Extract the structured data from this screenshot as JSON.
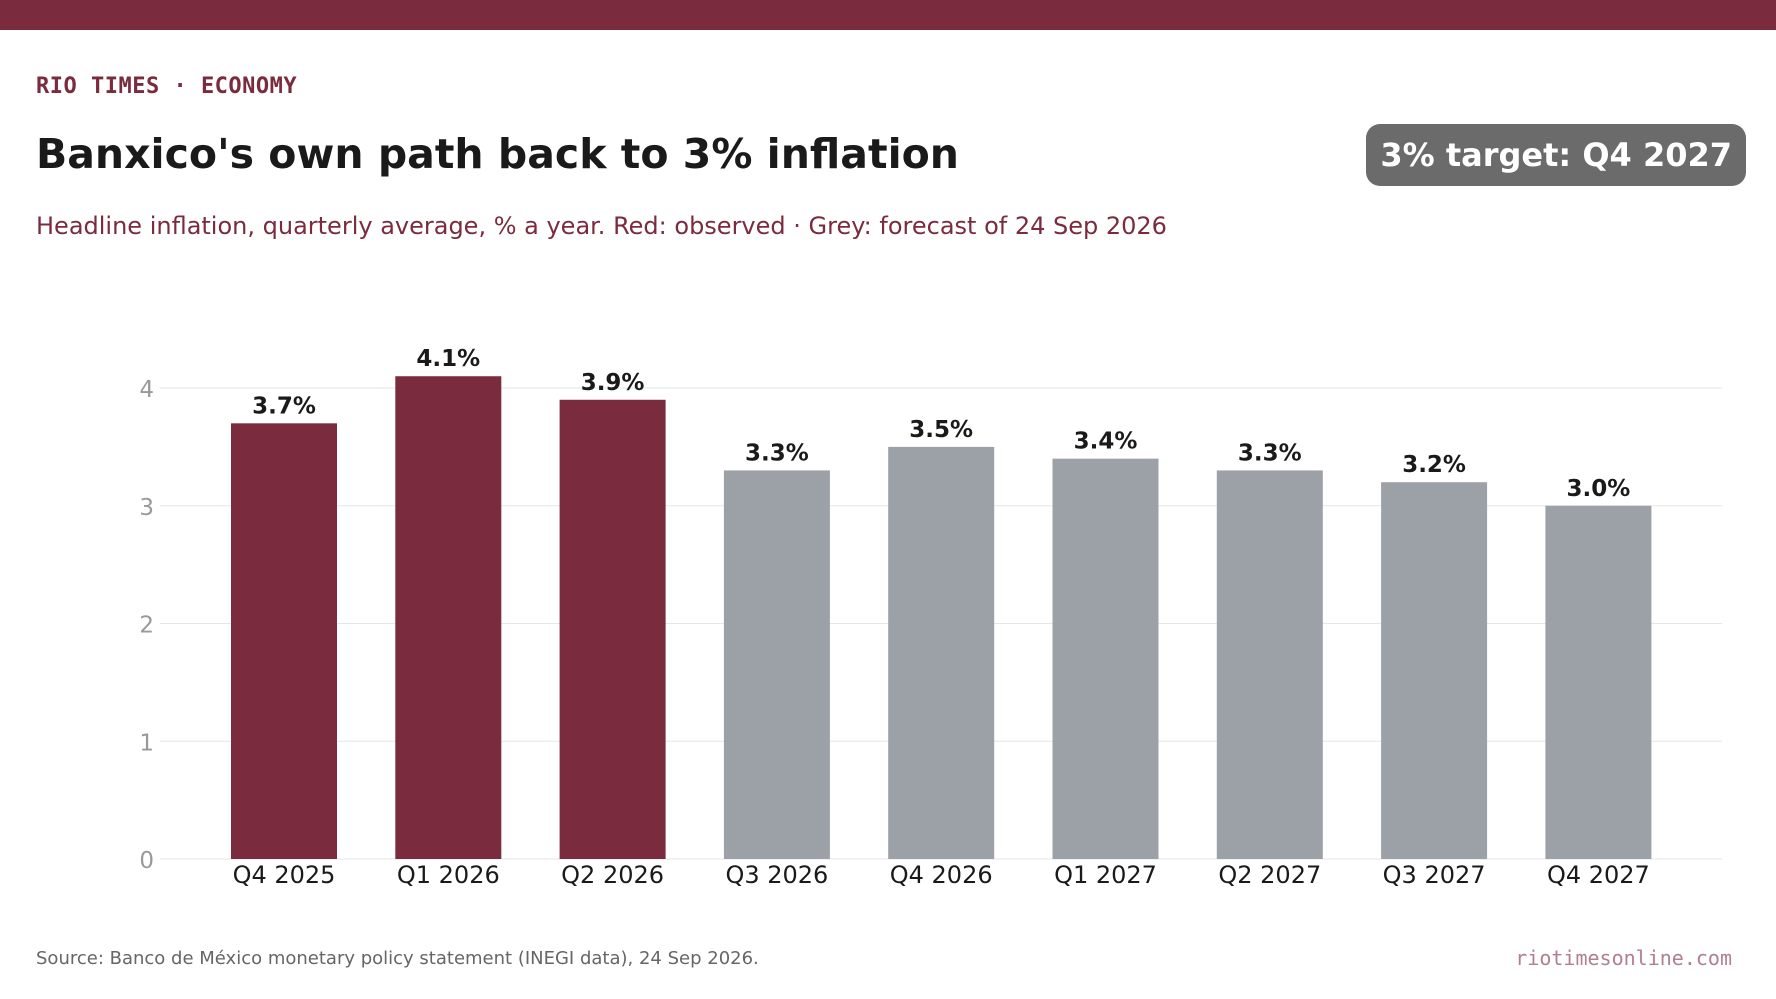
{
  "header": {
    "kicker": "RIO TIMES · ECONOMY",
    "title": "Banxico's own path back to 3% inflation",
    "subtitle": "Headline inflation, quarterly average, % a year. Red: observed · Grey: forecast of 24 Sep 2026",
    "badge": "3% target: Q4 2027"
  },
  "footer": {
    "source": "Source: Banco de México monetary policy statement (INEGI data), 24 Sep 2026.",
    "site": "riotimesonline.com"
  },
  "colors": {
    "brand": "#7a2c3e",
    "observed": "#7a2c3e",
    "forecast": "#9ca0a7",
    "badge": "#6b6b6b",
    "grid": "#e6e6e6",
    "tick": "#999999"
  },
  "chart_data": {
    "type": "bar",
    "categories": [
      "Q4 2025",
      "Q1 2026",
      "Q2 2026",
      "Q3 2026",
      "Q4 2026",
      "Q1 2027",
      "Q2 2027",
      "Q3 2027",
      "Q4 2027"
    ],
    "values": [
      3.7,
      4.1,
      3.9,
      3.3,
      3.5,
      3.4,
      3.3,
      3.2,
      3.0
    ],
    "data_labels": [
      "3.7%",
      "4.1%",
      "3.9%",
      "3.3%",
      "3.5%",
      "3.4%",
      "3.3%",
      "3.2%",
      "3.0%"
    ],
    "status": [
      "observed",
      "observed",
      "observed",
      "forecast",
      "forecast",
      "forecast",
      "forecast",
      "forecast",
      "forecast"
    ],
    "yticks": [
      0,
      1,
      2,
      3,
      4
    ],
    "ylim": [
      0,
      4.3
    ],
    "grid": true,
    "xlabel": "",
    "ylabel": ""
  }
}
